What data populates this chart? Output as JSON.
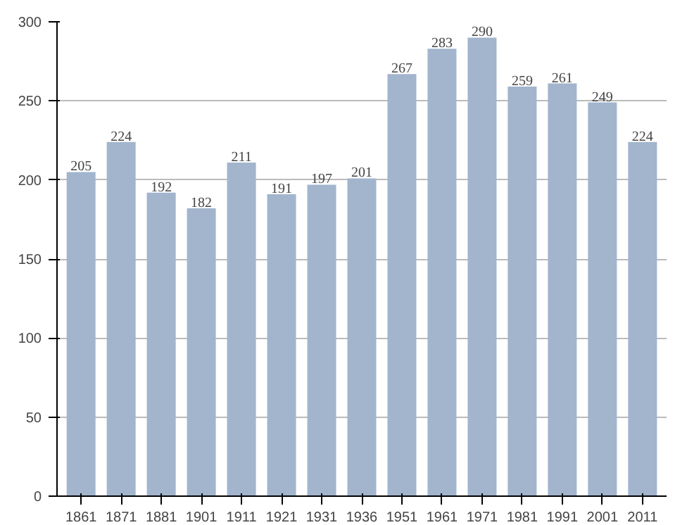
{
  "chart_data": {
    "type": "bar",
    "categories": [
      "1861",
      "1871",
      "1881",
      "1901",
      "1911",
      "1921",
      "1931",
      "1936",
      "1951",
      "1961",
      "1971",
      "1981",
      "1991",
      "2001",
      "2011"
    ],
    "values": [
      205,
      224,
      192,
      182,
      211,
      191,
      197,
      201,
      267,
      283,
      290,
      259,
      261,
      249,
      224
    ],
    "color": "#a2b5cd",
    "ylim": [
      0,
      300
    ],
    "yticks": [
      0,
      50,
      100,
      150,
      200,
      250,
      300
    ],
    "grid": "y",
    "data_labels": true
  }
}
